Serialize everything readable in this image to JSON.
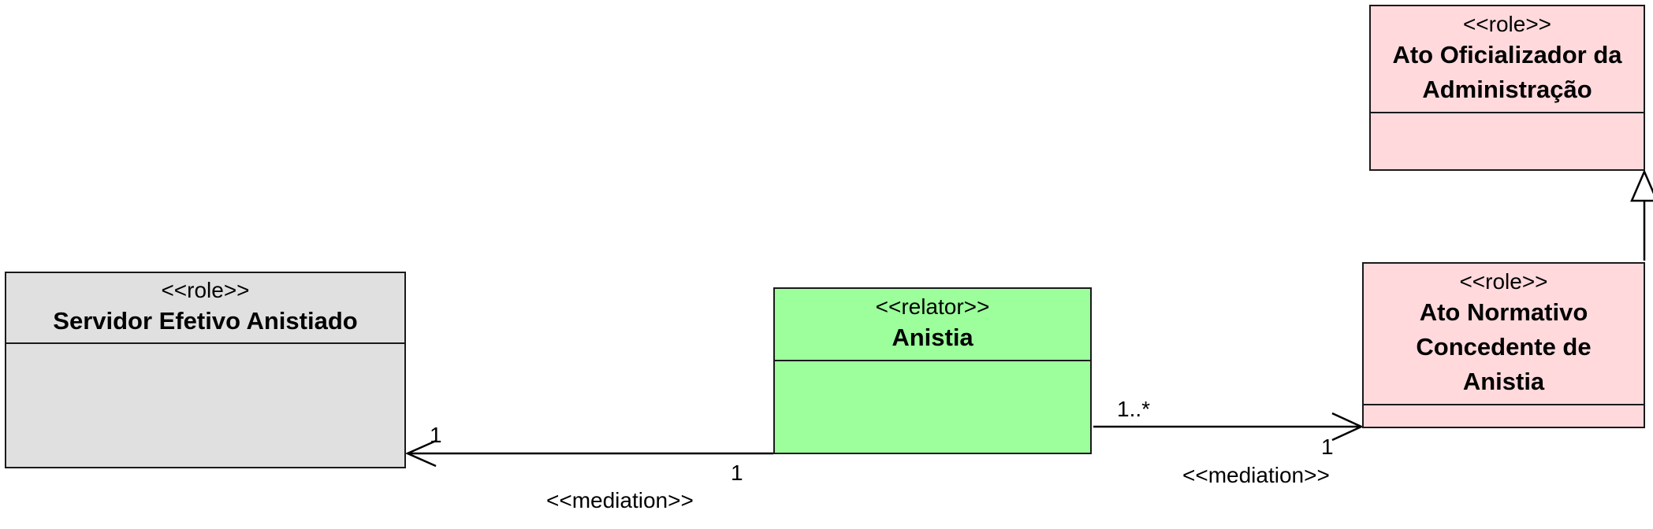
{
  "classes": {
    "ato_oficializador": {
      "stereotype": "<<role>>",
      "name_line1": "Ato Oficializador da",
      "name_line2": "Administração",
      "fill": "#ffd9dc"
    },
    "servidor": {
      "stereotype": "<<role>>",
      "name": "Servidor Efetivo Anistiado",
      "fill": "#e0e0e0"
    },
    "anistia": {
      "stereotype": "<<relator>>",
      "name": "Anistia",
      "fill": "#9cff9c"
    },
    "ato_normativo": {
      "stereotype": "<<role>>",
      "name_line1": "Ato Normativo",
      "name_line2": "Concedente de",
      "name_line3": "Anistia",
      "fill": "#ffd9dc"
    }
  },
  "associations": {
    "left": {
      "stereotype": "<<mediation>>",
      "mult_target": "1",
      "mult_source": "1"
    },
    "right": {
      "stereotype": "<<mediation>>",
      "mult_source": "1..*",
      "mult_target": "1"
    }
  }
}
